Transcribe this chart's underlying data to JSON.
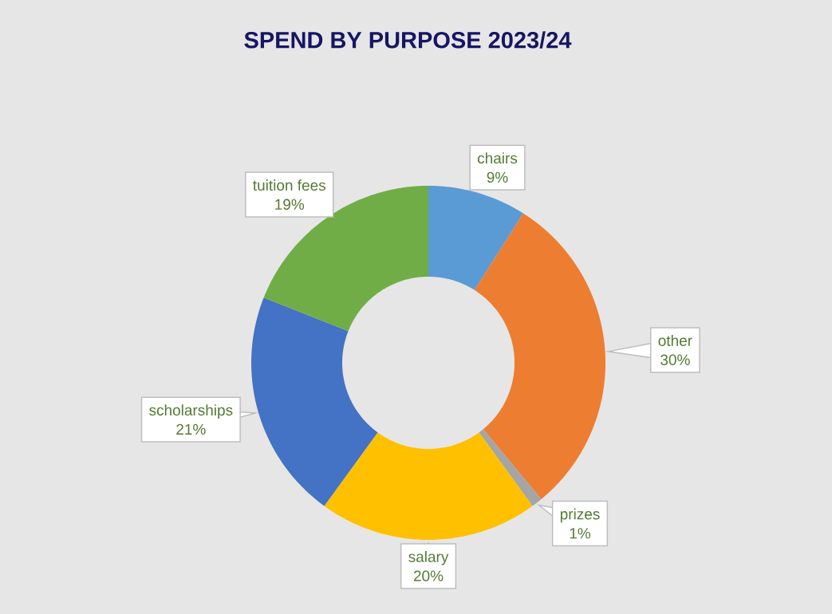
{
  "chart_data": {
    "type": "donut",
    "title": "SPEND BY PURPOSE 2023/24",
    "categories": [
      "chairs",
      "other",
      "prizes",
      "salary",
      "scholarships",
      "tuition fees"
    ],
    "values": [
      9,
      30,
      1,
      20,
      21,
      19
    ],
    "value_labels": [
      "9%",
      "30%",
      "1%",
      "20%",
      "21%",
      "19%"
    ],
    "colors": [
      "#5b9bd5",
      "#ed7d31",
      "#a5a5a5",
      "#ffc000",
      "#4472c4",
      "#70ad47"
    ]
  }
}
